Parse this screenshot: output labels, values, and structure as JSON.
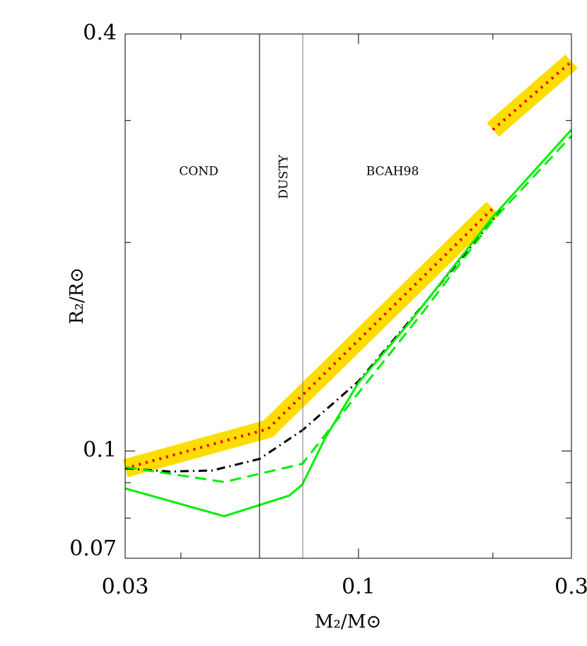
{
  "chart_data": {
    "type": "line",
    "x_label": "M₂/M⊙",
    "y_label": "R₂/R⊙",
    "xlim": [
      0.03,
      0.3
    ],
    "ylim": [
      0.07,
      0.4
    ],
    "log_x": true,
    "log_y": true,
    "xticks": [
      0.03,
      0.1,
      0.3
    ],
    "yticks": [
      0.07,
      0.1,
      0.4
    ],
    "xminor": [
      0.04,
      0.2
    ],
    "yminor": [
      0.08,
      0.09,
      0.2,
      0.3
    ],
    "vlines": [
      0.06,
      0.075
    ],
    "annotations": [
      "COND",
      "DUSTY",
      "BCAH98"
    ],
    "series": [
      {
        "color": "#ee0000",
        "band_color": "#ffdd00",
        "style": "dotted",
        "x": [
          0.03,
          0.0627,
          0.2,
          null,
          0.2,
          0.3
        ],
        "values": [
          0.0944,
          0.1076,
          0.224,
          null,
          0.291,
          0.365
        ]
      },
      {
        "color": "#000000",
        "style": "dashdot",
        "x": [
          0.03,
          0.0377,
          0.047,
          0.06,
          0.0748,
          0.1,
          0.1395,
          0.2085
        ],
        "values": [
          0.0944,
          0.0934,
          0.0937,
          0.0974,
          0.1071,
          0.1261,
          0.1624,
          0.2228
        ]
      },
      {
        "color": "#00ee00",
        "style": "dashed",
        "x": [
          0.03,
          0.05,
          0.0748,
          0.0903,
          0.1395,
          0.2,
          0.3
        ],
        "values": [
          0.0948,
          0.0902,
          0.0958,
          0.1117,
          0.1587,
          0.2153,
          0.285
        ]
      },
      {
        "color": "#00ee00",
        "style": "solid",
        "x": [
          0.03,
          0.05,
          0.0699,
          0.0748,
          0.0842,
          0.1,
          0.13,
          0.2,
          0.3
        ],
        "values": [
          0.0883,
          0.0805,
          0.0862,
          0.0894,
          0.1044,
          0.1255,
          0.1532,
          0.2178,
          0.291
        ]
      }
    ]
  }
}
